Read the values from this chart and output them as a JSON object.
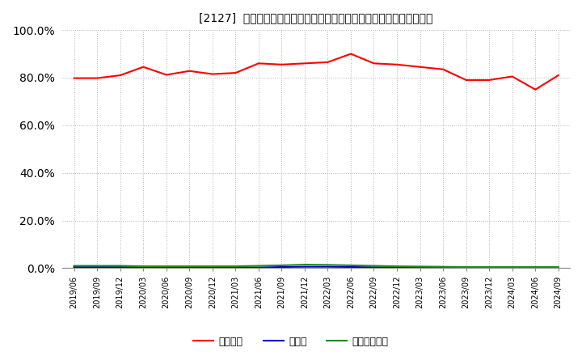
{
  "title": "[2127]  自己資本、のれん、繰延税金資産の総資産に対する比率の推移",
  "x_labels": [
    "2019/06",
    "2019/09",
    "2019/12",
    "2020/03",
    "2020/06",
    "2020/09",
    "2020/12",
    "2021/03",
    "2021/06",
    "2021/09",
    "2021/12",
    "2022/03",
    "2022/06",
    "2022/09",
    "2022/12",
    "2023/03",
    "2023/06",
    "2023/09",
    "2023/12",
    "2024/03",
    "2024/06",
    "2024/09"
  ],
  "jikoshihon": [
    79.8,
    79.8,
    81.0,
    84.5,
    81.2,
    82.8,
    81.5,
    82.0,
    86.0,
    85.5,
    86.0,
    86.5,
    90.0,
    86.0,
    85.5,
    84.5,
    83.5,
    79.0,
    79.0,
    80.5,
    75.0,
    81.0
  ],
  "noren": [
    0.5,
    0.5,
    0.5,
    0.4,
    0.4,
    0.4,
    0.4,
    0.4,
    0.3,
    0.5,
    0.6,
    0.6,
    0.5,
    0.4,
    0.4,
    0.3,
    0.3,
    0.2,
    0.2,
    0.2,
    0.2,
    0.2
  ],
  "kurinobe": [
    1.0,
    1.0,
    1.0,
    0.8,
    0.8,
    0.8,
    0.8,
    0.8,
    1.0,
    1.2,
    1.5,
    1.4,
    1.2,
    1.0,
    0.8,
    0.7,
    0.6,
    0.5,
    0.5,
    0.5,
    0.5,
    0.5
  ],
  "jikoshihon_color": "#ff0000",
  "noren_color": "#0000cc",
  "kurinobe_color": "#228822",
  "background_color": "#ffffff",
  "grid_color": "#aaaaaa",
  "ylim": [
    0,
    100
  ],
  "yticks": [
    0,
    20,
    40,
    60,
    80,
    100
  ],
  "legend_jikoshihon": "自己資本",
  "legend_noren": "のれん",
  "legend_kurinobe": "繰延税金資産",
  "title_prefix": "[2127]  ",
  "figwidth": 7.2,
  "figheight": 4.4,
  "dpi": 100
}
